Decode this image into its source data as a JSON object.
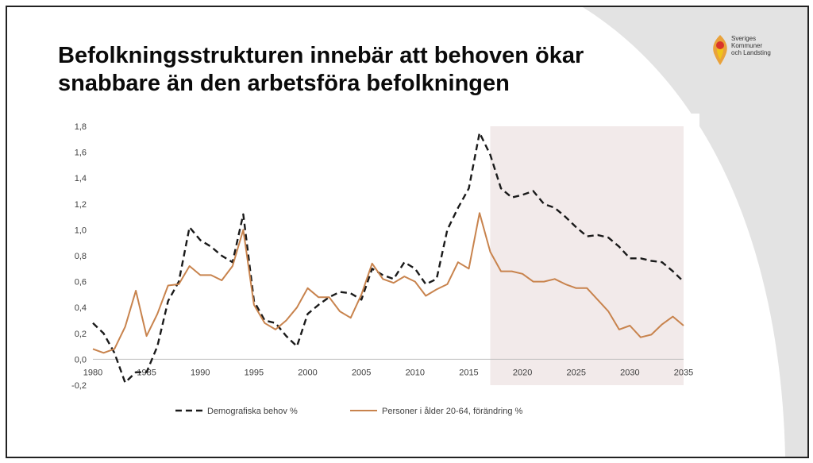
{
  "slide": {
    "title_line1": "Befolkningsstrukturen innebär att behoven ökar",
    "title_line2": "snabbare än den arbetsföra befolkningen"
  },
  "logo": {
    "line1": "Sveriges",
    "line2": "Kommuner",
    "line3": "och Landsting",
    "colors": [
      "#e9a23b",
      "#d9342b",
      "#f0c419"
    ]
  },
  "colors": {
    "demographic": "#1a1a1a",
    "population": "#c8834d",
    "forecast_shade": "#f2eaea",
    "background_swoosh": "#e3e3e3"
  },
  "chart_data": {
    "type": "line",
    "x": [
      1980,
      1981,
      1982,
      1983,
      1984,
      1985,
      1986,
      1987,
      1988,
      1989,
      1990,
      1991,
      1992,
      1993,
      1994,
      1995,
      1996,
      1997,
      1998,
      1999,
      2000,
      2001,
      2002,
      2003,
      2004,
      2005,
      2006,
      2007,
      2008,
      2009,
      2010,
      2011,
      2012,
      2013,
      2014,
      2015,
      2016,
      2017,
      2018,
      2019,
      2020,
      2021,
      2022,
      2023,
      2024,
      2025,
      2026,
      2027,
      2028,
      2029,
      2030,
      2031,
      2032,
      2033,
      2034,
      2035
    ],
    "series": [
      {
        "name": "Demografiska behov %",
        "style": "dashed",
        "color": "#1a1a1a",
        "values": [
          0.28,
          0.2,
          0.05,
          -0.18,
          -0.1,
          -0.1,
          0.1,
          0.45,
          0.6,
          1.02,
          0.92,
          0.87,
          0.8,
          0.75,
          1.12,
          0.45,
          0.3,
          0.28,
          0.18,
          0.1,
          0.35,
          0.42,
          0.48,
          0.52,
          0.51,
          0.46,
          0.7,
          0.65,
          0.62,
          0.75,
          0.7,
          0.58,
          0.62,
          1.0,
          1.17,
          1.32,
          1.75,
          1.58,
          1.32,
          1.25,
          1.27,
          1.3,
          1.2,
          1.17,
          1.1,
          1.02,
          0.95,
          0.96,
          0.94,
          0.87,
          0.78,
          0.78,
          0.76,
          0.75,
          0.68,
          0.6
        ]
      },
      {
        "name": "Personer i ålder 20-64, förändring %",
        "style": "solid",
        "color": "#c8834d",
        "values": [
          0.08,
          0.05,
          0.08,
          0.25,
          0.53,
          0.18,
          0.35,
          0.57,
          0.58,
          0.72,
          0.65,
          0.65,
          0.61,
          0.72,
          1.0,
          0.42,
          0.28,
          0.23,
          0.3,
          0.4,
          0.55,
          0.48,
          0.48,
          0.37,
          0.32,
          0.5,
          0.74,
          0.62,
          0.59,
          0.64,
          0.6,
          0.49,
          0.54,
          0.58,
          0.75,
          0.7,
          1.13,
          0.83,
          0.68,
          0.68,
          0.66,
          0.6,
          0.6,
          0.62,
          0.58,
          0.55,
          0.55,
          0.46,
          0.37,
          0.23,
          0.26,
          0.17,
          0.19,
          0.27,
          0.33,
          0.26
        ]
      }
    ],
    "xticks": [
      1980,
      1985,
      1990,
      1995,
      2000,
      2005,
      2010,
      2015,
      2020,
      2025,
      2030,
      2035
    ],
    "xtick_labels": [
      "1980",
      "1985",
      "1990",
      "1995",
      "2000",
      "2005",
      "2010",
      "2015",
      "2020",
      "2025",
      "2030",
      "2035"
    ],
    "yticks": [
      -0.2,
      0,
      0.2,
      0.4,
      0.6,
      0.8,
      1.0,
      1.2,
      1.4,
      1.6,
      1.8
    ],
    "ytick_labels": [
      "-0,2",
      "0,0",
      "0,2",
      "0,4",
      "0,6",
      "0,8",
      "1,0",
      "1,2",
      "1,4",
      "1,6",
      "1,8"
    ],
    "xlim": [
      1980,
      2035
    ],
    "ylim": [
      -0.2,
      1.8
    ],
    "forecast_start": 2017,
    "grid": false,
    "legend_position": "bottom"
  }
}
